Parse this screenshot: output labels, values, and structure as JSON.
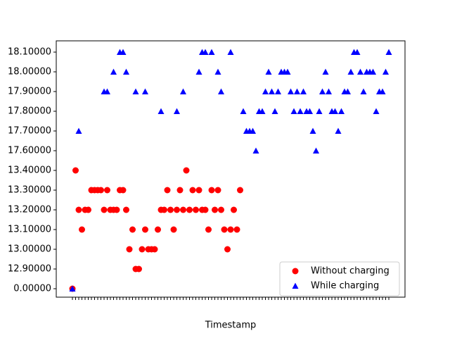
{
  "chart_data": {
    "type": "scatter",
    "x_label": "Timestamp",
    "categories": [
      null,
      null,
      null,
      null,
      null,
      null,
      null,
      null,
      null,
      null,
      null,
      null,
      null,
      null,
      null,
      null,
      null,
      null,
      null,
      null,
      null,
      null,
      null,
      null,
      null,
      null,
      null,
      null,
      null,
      null,
      null,
      null,
      null,
      null,
      null,
      null,
      null,
      null,
      null,
      null,
      null,
      null,
      null,
      null,
      null,
      null,
      null,
      null,
      null,
      null,
      null,
      null,
      null,
      null,
      null,
      null,
      null,
      null,
      null,
      null,
      null,
      null,
      null,
      null,
      null,
      null,
      null,
      null,
      null,
      null,
      null,
      null,
      null,
      null,
      null,
      null,
      null,
      null,
      null,
      null,
      null,
      null,
      null,
      null,
      null,
      null,
      null,
      null,
      null,
      null,
      null,
      null,
      null,
      null,
      null,
      null,
      null,
      null,
      null,
      null,
      null
    ],
    "yticks": [
      {
        "value": 0,
        "label": "0.00000"
      },
      {
        "value": 12.9,
        "label": "12.90000"
      },
      {
        "value": 13,
        "label": "13.00000"
      },
      {
        "value": 13.1,
        "label": "13.10000"
      },
      {
        "value": 13.2,
        "label": "13.20000"
      },
      {
        "value": 13.3,
        "label": "13.30000"
      },
      {
        "value": 13.4,
        "label": "13.40000"
      },
      {
        "value": 17.6,
        "label": "17.60000"
      },
      {
        "value": 17.7,
        "label": "17.70000"
      },
      {
        "value": 17.8,
        "label": "17.80000"
      },
      {
        "value": 17.9,
        "label": "17.90000"
      },
      {
        "value": 18,
        "label": "18.00000"
      },
      {
        "value": 18.1,
        "label": "18.10000"
      }
    ],
    "legend": "lower right",
    "series": [
      {
        "name": "Without charging",
        "color": "#ff0000",
        "marker": "circle",
        "values": [
          0,
          13.4,
          13.2,
          13.1,
          13.2,
          13.2,
          13.3,
          13.3,
          13.3,
          13.3,
          13.2,
          13.3,
          13.2,
          13.2,
          13.2,
          13.3,
          13.3,
          13.2,
          13.0,
          13.1,
          12.9,
          12.9,
          13.0,
          13.1,
          13.0,
          13.0,
          13.0,
          13.1,
          13.2,
          13.2,
          13.3,
          13.2,
          13.1,
          13.2,
          13.3,
          13.2,
          13.4,
          13.2,
          13.3,
          13.2,
          13.3,
          13.2,
          13.2,
          13.1,
          13.3,
          13.2,
          13.3,
          13.2,
          13.1,
          13.0,
          13.1,
          13.2,
          13.1,
          13.3,
          null,
          null,
          null,
          null,
          null,
          null,
          null,
          null,
          null,
          null,
          null,
          null,
          null,
          null,
          null,
          null,
          null,
          null,
          null,
          null,
          null,
          null,
          null,
          null,
          null,
          null,
          null,
          null,
          null,
          null,
          null,
          null,
          null,
          null,
          null,
          null,
          null,
          null,
          null,
          null,
          null,
          null,
          null,
          null,
          null,
          null,
          null
        ]
      },
      {
        "name": "While charging",
        "color": "#0000ff",
        "marker": "triangle",
        "values": [
          0,
          null,
          17.7,
          null,
          null,
          null,
          null,
          null,
          null,
          null,
          17.9,
          17.9,
          null,
          18.0,
          null,
          18.1,
          18.1,
          18.0,
          null,
          null,
          17.9,
          null,
          null,
          17.9,
          null,
          null,
          null,
          null,
          17.8,
          null,
          null,
          null,
          null,
          17.8,
          null,
          17.9,
          null,
          null,
          null,
          null,
          18.0,
          18.1,
          18.1,
          null,
          18.1,
          null,
          18.0,
          17.9,
          null,
          null,
          18.1,
          null,
          null,
          null,
          17.8,
          17.7,
          17.7,
          17.7,
          17.6,
          17.8,
          17.8,
          17.9,
          18.0,
          17.9,
          17.8,
          17.9,
          18.0,
          18.0,
          18.0,
          17.9,
          17.8,
          17.9,
          17.8,
          17.9,
          17.8,
          17.8,
          17.7,
          17.6,
          17.8,
          17.9,
          18.0,
          17.9,
          17.8,
          17.8,
          17.7,
          17.8,
          17.9,
          17.9,
          18.0,
          18.1,
          18.1,
          18.0,
          17.9,
          18.0,
          18.0,
          18.0,
          17.8,
          17.9,
          17.9,
          18.0,
          18.1
        ]
      }
    ]
  }
}
